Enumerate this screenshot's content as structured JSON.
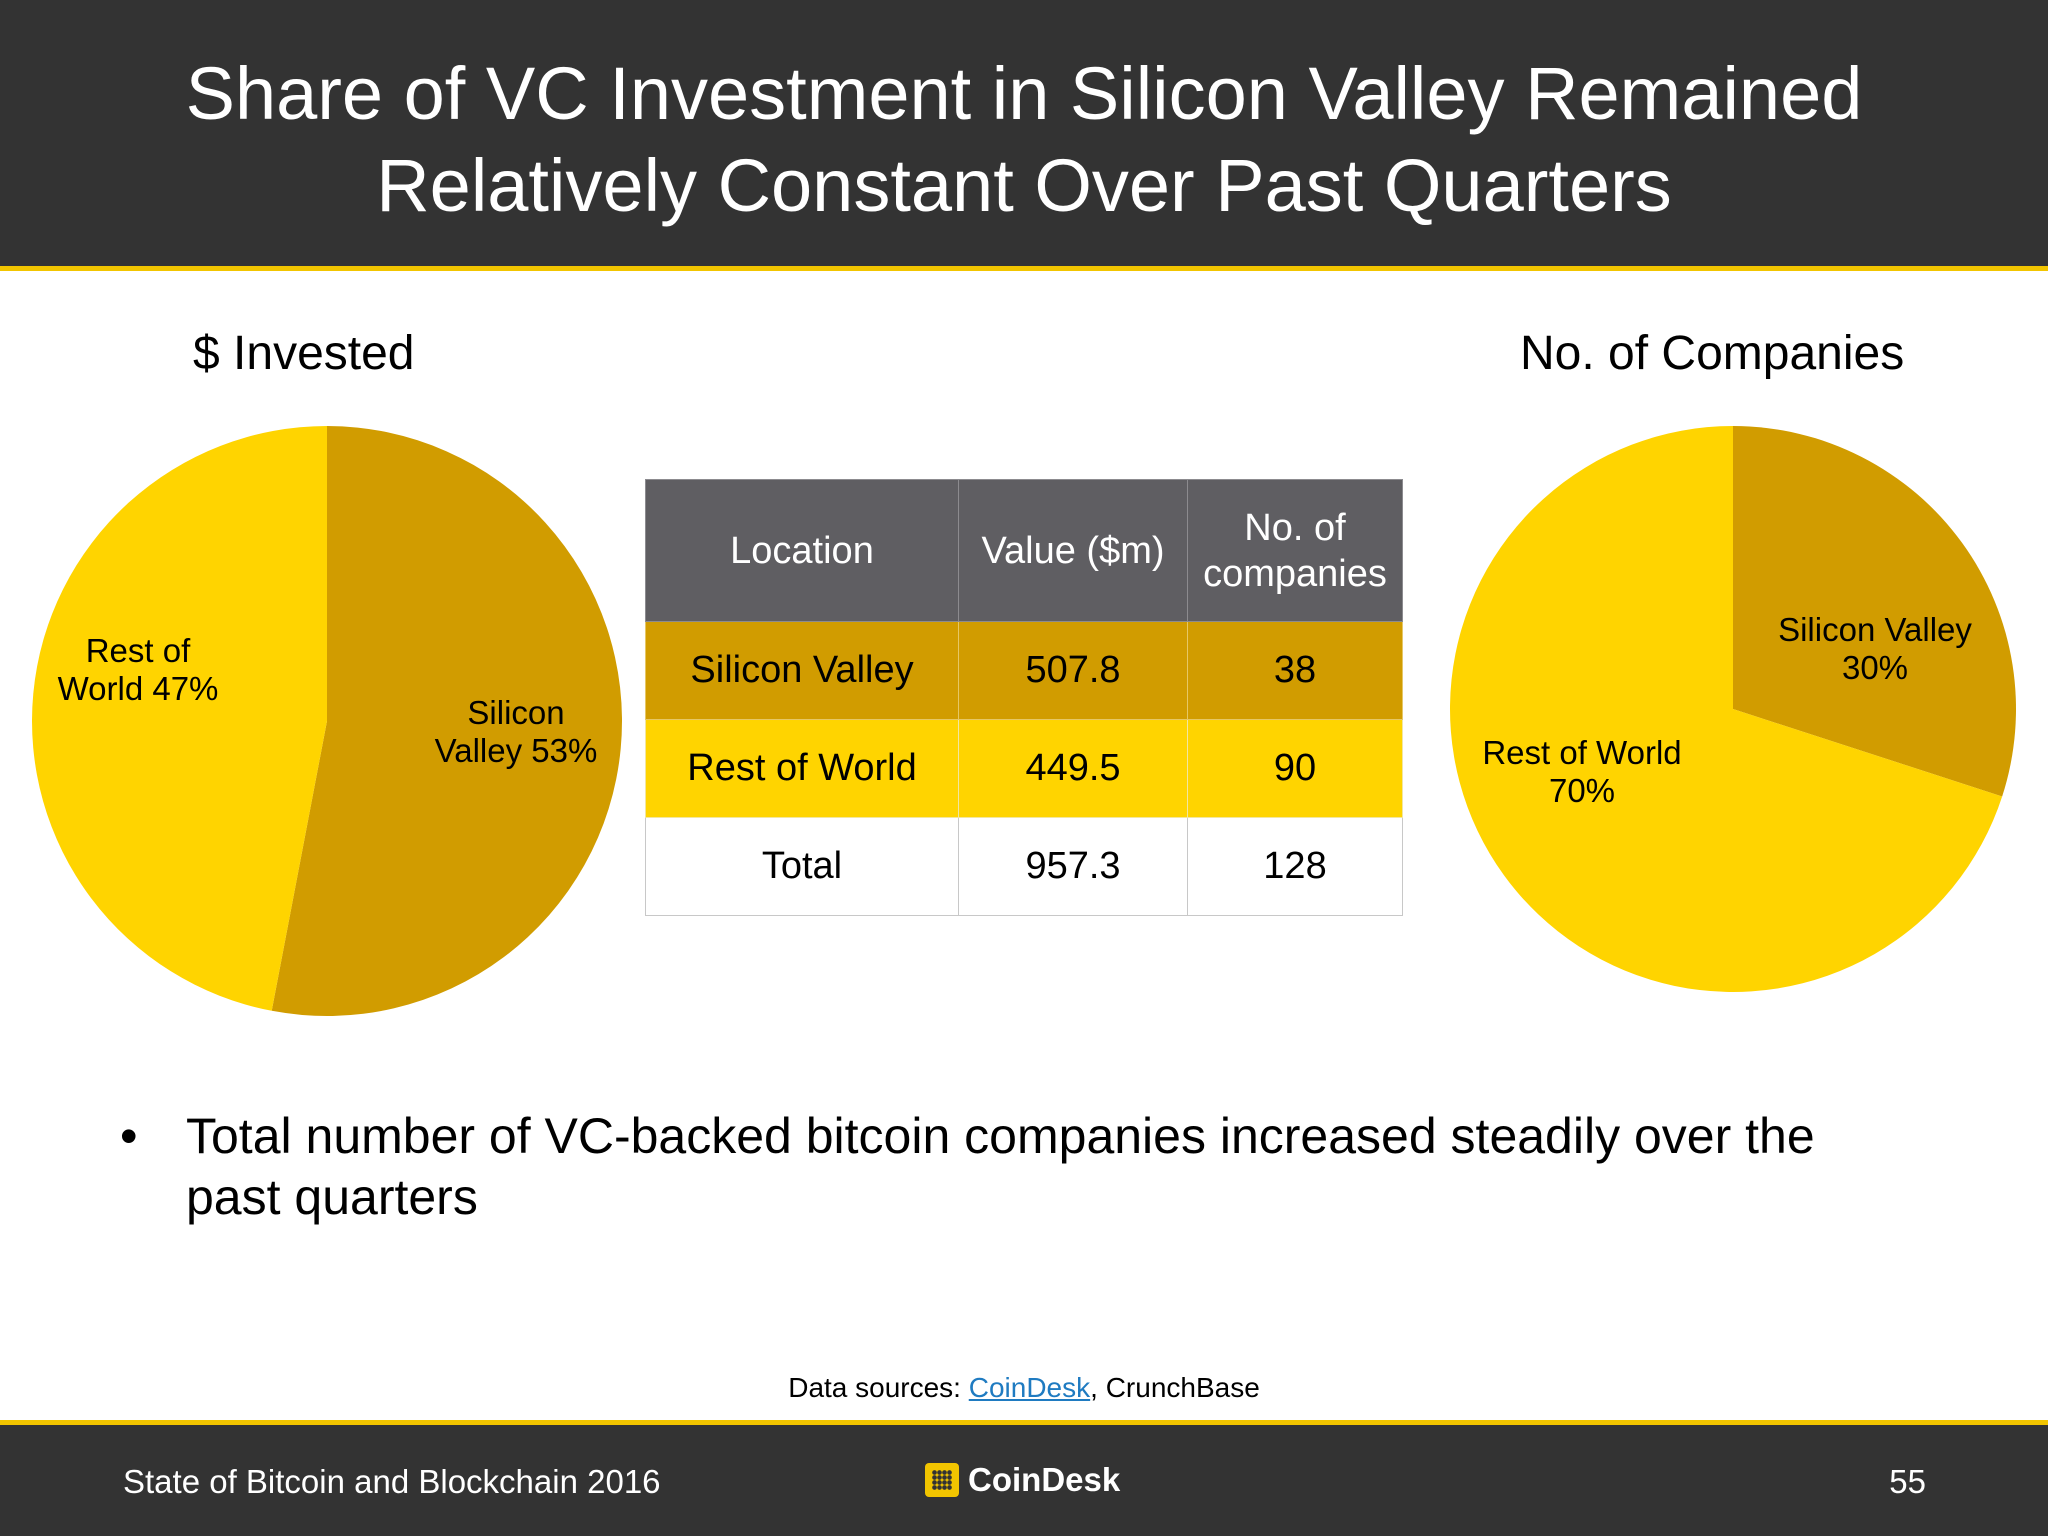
{
  "title_lines": [
    "Share of VC Investment in Silicon Valley Remained",
    "Relatively Constant Over Past Quarters"
  ],
  "chart_data": [
    {
      "type": "pie",
      "title": "$ Invested",
      "slices": [
        {
          "name": "Silicon Valley",
          "value": 53,
          "label_lines": [
            "Silicon",
            "Valley 53%"
          ],
          "color": "#d19c00"
        },
        {
          "name": "Rest of World",
          "value": 47,
          "label_lines": [
            "Rest of",
            "World 47%"
          ],
          "color": "#ffd400"
        }
      ]
    },
    {
      "type": "pie",
      "title": "No. of Companies",
      "slices": [
        {
          "name": "Silicon Valley",
          "value": 30,
          "label_lines": [
            "Silicon Valley",
            "30%"
          ],
          "color": "#d19c00"
        },
        {
          "name": "Rest of World",
          "value": 70,
          "label_lines": [
            "Rest of World",
            "70%"
          ],
          "color": "#ffd400"
        }
      ]
    },
    {
      "type": "table",
      "headers": [
        "Location",
        "Value ($m)",
        "No. of companies"
      ],
      "rows": [
        [
          "Silicon Valley",
          "507.8",
          "38"
        ],
        [
          "Rest of World",
          "449.5",
          "90"
        ],
        [
          "Total",
          "957.3",
          "128"
        ]
      ]
    }
  ],
  "table_header_lines": {
    "col3": [
      "No. of",
      "companies"
    ]
  },
  "bullet": {
    "symbol": "•",
    "lines": [
      "Total number of VC-backed bitcoin companies increased steadily over the",
      "past quarters"
    ]
  },
  "sources": {
    "prefix": "Data sources: ",
    "link": "CoinDesk",
    "rest": ", CrunchBase"
  },
  "footer": {
    "left": "State of Bitcoin and Blockchain 2016",
    "brand": "CoinDesk",
    "page": "55"
  },
  "colors": {
    "header_bg": "#333333",
    "accent": "#f2c500",
    "dark_gold": "#d19c00",
    "yellow": "#ffd400",
    "table_header": "#5f5e62",
    "link": "#1f7bc1"
  }
}
